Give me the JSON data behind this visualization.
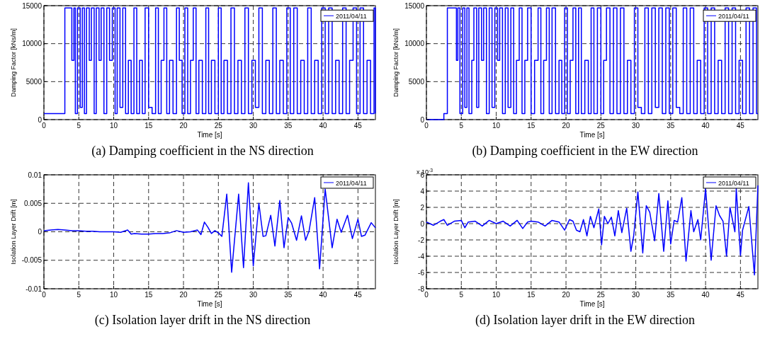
{
  "chart_data": [
    {
      "type": "step",
      "title": "(a) Damping coefficient in the NS direction",
      "xlabel": "Time [s]",
      "ylabel": "Damping Factor [kNs/m]",
      "xlim": [
        0,
        47.5
      ],
      "xticks": [
        0,
        5,
        10,
        15,
        20,
        25,
        30,
        35,
        40,
        45
      ],
      "ylim": [
        0,
        15000
      ],
      "yticks": [
        0,
        5000,
        10000,
        15000
      ],
      "grid": true,
      "legend": "top right",
      "series": [
        {
          "name": "2011/04/11",
          "color": "#0000ff",
          "x": [
            0,
            3,
            4,
            4.3,
            4.5,
            4.8,
            5.2,
            5.5,
            5.8,
            6.1,
            6.5,
            6.8,
            7.2,
            7.5,
            7.9,
            8.2,
            8.6,
            9,
            9.4,
            9.8,
            10.2,
            10.5,
            10.9,
            11.3,
            11.7,
            12.1,
            12.5,
            12.9,
            13.3,
            13.7,
            14.1,
            14.5,
            15,
            15.5,
            16,
            16.4,
            16.8,
            17.2,
            17.6,
            18,
            18.5,
            19,
            19.4,
            19.8,
            20.2,
            20.6,
            21,
            21.4,
            21.8,
            22.2,
            22.7,
            23.2,
            23.6,
            24,
            24.5,
            25,
            25.4,
            25.8,
            26.3,
            26.8,
            27.3,
            27.8,
            28.3,
            28.8,
            29.3,
            29.8,
            30.3,
            30.8,
            31.3,
            31.8,
            32.3,
            32.8,
            33.3,
            33.8,
            34.3,
            34.8,
            35.3,
            35.8,
            36.3,
            36.8,
            37.3,
            37.8,
            38.3,
            38.8,
            39.3,
            39.8,
            40.3,
            40.8,
            41.3,
            41.8,
            42.3,
            42.8,
            43.3,
            43.8,
            44.3,
            44.8,
            45.3,
            45.8,
            46.3,
            46.8,
            47.3,
            47.5
          ],
          "values": [
            800,
            14700,
            7800,
            14700,
            800,
            14700,
            1600,
            14700,
            800,
            14700,
            7800,
            14700,
            800,
            14700,
            7800,
            14700,
            800,
            14700,
            7800,
            14700,
            800,
            14700,
            1600,
            14700,
            800,
            7800,
            800,
            14700,
            800,
            7800,
            800,
            14700,
            1600,
            800,
            14700,
            800,
            7800,
            14700,
            800,
            7800,
            800,
            14700,
            7800,
            800,
            14700,
            800,
            7800,
            14700,
            800,
            7800,
            800,
            14700,
            800,
            7800,
            800,
            14700,
            800,
            7800,
            800,
            14700,
            800,
            7800,
            800,
            14700,
            800,
            7800,
            1600,
            14700,
            800,
            7800,
            800,
            14700,
            800,
            7800,
            800,
            14700,
            800,
            14700,
            800,
            7800,
            800,
            14700,
            800,
            7800,
            800,
            14700,
            800,
            14700,
            800,
            7800,
            800,
            14700,
            800,
            7800,
            14700,
            800,
            14700,
            800,
            7800,
            800,
            14700,
            800
          ]
        }
      ]
    },
    {
      "type": "step",
      "title": "(b) Damping coefficient in the EW direction",
      "xlabel": "Time [s]",
      "ylabel": "Damping Factor [kNs/m]",
      "xlim": [
        0,
        47.5
      ],
      "xticks": [
        0,
        5,
        10,
        15,
        20,
        25,
        30,
        35,
        40,
        45
      ],
      "ylim": [
        0,
        15000
      ],
      "yticks": [
        0,
        5000,
        10000,
        15000
      ],
      "grid": true,
      "legend": "top right",
      "series": [
        {
          "name": "2011/04/11",
          "color": "#0000ff",
          "x": [
            0,
            2.5,
            3,
            4.3,
            4.5,
            4.8,
            5.2,
            5.5,
            5.8,
            6.1,
            6.5,
            6.8,
            7.2,
            7.5,
            7.9,
            8.2,
            8.6,
            9,
            9.4,
            9.8,
            10.2,
            10.5,
            10.9,
            11.3,
            11.7,
            12.1,
            12.5,
            12.9,
            13.3,
            13.7,
            14.1,
            14.5,
            15,
            15.5,
            16,
            16.4,
            16.8,
            17.2,
            17.6,
            18,
            18.5,
            19,
            19.4,
            19.8,
            20.2,
            20.6,
            21,
            21.4,
            21.8,
            22.2,
            22.7,
            23.2,
            23.6,
            24,
            24.5,
            25,
            25.4,
            25.8,
            26.3,
            26.8,
            27.3,
            27.8,
            28.3,
            28.8,
            29.3,
            29.8,
            30.3,
            30.8,
            31.3,
            31.8,
            32.3,
            32.8,
            33.3,
            33.8,
            34.3,
            34.8,
            35.3,
            35.8,
            36.3,
            36.8,
            37.3,
            37.8,
            38.3,
            38.8,
            39.3,
            39.8,
            40.3,
            40.8,
            41.3,
            41.8,
            42.3,
            42.8,
            43.3,
            43.8,
            44.3,
            44.8,
            45.3,
            45.8,
            46.3,
            46.8,
            47.3,
            47.5
          ],
          "values": [
            0,
            800,
            14700,
            7800,
            14700,
            800,
            14700,
            1600,
            14700,
            800,
            7800,
            14700,
            1600,
            14700,
            7800,
            14700,
            800,
            14700,
            1600,
            14700,
            7800,
            14700,
            800,
            14700,
            1600,
            14700,
            800,
            7800,
            14700,
            800,
            7800,
            14700,
            800,
            7800,
            14700,
            800,
            7800,
            14700,
            800,
            14700,
            800,
            7800,
            800,
            14700,
            800,
            7800,
            14700,
            800,
            14700,
            800,
            7800,
            800,
            14700,
            800,
            14700,
            800,
            7800,
            14700,
            800,
            14700,
            800,
            14700,
            800,
            7800,
            800,
            14700,
            1600,
            800,
            14700,
            800,
            14700,
            1600,
            14700,
            800,
            14700,
            800,
            14700,
            1600,
            800,
            14700,
            800,
            14700,
            800,
            7800,
            800,
            14700,
            800,
            14700,
            800,
            7800,
            800,
            14700,
            800,
            14700,
            800,
            7800,
            800,
            14700,
            800,
            14700,
            800,
            800
          ]
        }
      ]
    },
    {
      "type": "line",
      "title": "(c) Isolation layer drift in the NS direction",
      "xlabel": "Time [s]",
      "ylabel": "Isolation Layer Drift [m]",
      "xlim": [
        0,
        47.5
      ],
      "xticks": [
        0,
        5,
        10,
        15,
        20,
        25,
        30,
        35,
        40,
        45
      ],
      "ylim": [
        -0.01,
        0.01
      ],
      "yticks": [
        -0.01,
        -0.005,
        0,
        0.005,
        0.01
      ],
      "grid": true,
      "legend": "top right",
      "series": [
        {
          "name": "2011/04/11",
          "color": "#0000ff",
          "x": [
            0,
            1,
            2,
            3,
            4,
            5,
            6,
            7,
            8,
            9,
            10,
            11,
            12,
            12.5,
            13,
            14,
            15,
            16,
            17,
            18,
            19,
            20,
            21,
            22,
            22.5,
            23,
            23.5,
            24,
            24.5,
            25,
            25.5,
            26.2,
            26.9,
            27.9,
            28.6,
            29.3,
            30,
            30.8,
            31.4,
            31.8,
            32.5,
            33.1,
            33.8,
            34.4,
            35,
            35.5,
            36.2,
            36.9,
            37.5,
            38,
            38.8,
            39.5,
            40.3,
            41.3,
            42,
            42.6,
            43.5,
            44.2,
            45,
            45.5,
            46,
            46.9,
            47.5
          ],
          "values": [
            0.0002,
            0.0003,
            0.0004,
            0.0003,
            0.0002,
            0.0002,
            0.0001,
            0.0001,
            0,
            0,
            0,
            -0.0001,
            0.0003,
            -0.0004,
            -0.0003,
            -0.0004,
            -0.0004,
            -0.0003,
            -0.0003,
            -0.0002,
            0.0002,
            -0.0001,
            0,
            0.0003,
            -0.0005,
            0.0017,
            0.0008,
            -0.0003,
            0.0002,
            -0.0002,
            -0.0008,
            0.0066,
            -0.0071,
            0.0066,
            -0.0063,
            0.0086,
            -0.006,
            0.005,
            -0.0008,
            -0.0007,
            0.0029,
            -0.0025,
            0.0055,
            -0.0028,
            0.0025,
            0.0015,
            -0.0015,
            0.0028,
            -0.0015,
            0.0002,
            0.006,
            -0.0065,
            0.0075,
            -0.0028,
            0.0022,
            -0.0001,
            0.0029,
            -0.0012,
            0.0022,
            -0.0008,
            -0.0006,
            0.0016,
            0.0007
          ]
        }
      ]
    },
    {
      "type": "line",
      "title": "(d) Isolation layer drift in the EW direction",
      "xlabel": "Time [s]",
      "ylabel": "Isolation Layer Drift [m]",
      "annotations": [
        "x 10$^{-3}$"
      ],
      "xlim": [
        0,
        47.5
      ],
      "xticks": [
        0,
        5,
        10,
        15,
        20,
        25,
        30,
        35,
        40,
        45
      ],
      "ylim": [
        -8,
        6
      ],
      "yticks": [
        -8,
        -6,
        -4,
        -2,
        0,
        2,
        4,
        6
      ],
      "grid": true,
      "legend": "top right",
      "series": [
        {
          "name": "2011/04/11",
          "color": "#0000ff",
          "x": [
            0,
            1,
            2,
            2.5,
            3,
            4,
            5,
            5.5,
            6,
            7,
            8,
            9,
            10,
            11,
            12,
            13,
            13.8,
            14.5,
            15,
            16,
            17,
            18,
            19,
            19.8,
            20.5,
            21,
            21.5,
            22,
            22.5,
            23,
            23.5,
            24,
            24.7,
            25.1,
            25.5,
            26,
            26.5,
            27,
            27.5,
            28,
            28.7,
            29.3,
            29.7,
            30.3,
            31,
            31.5,
            32,
            32.7,
            33.3,
            34,
            34.6,
            35,
            35.5,
            36,
            36.6,
            37.2,
            37.9,
            38.3,
            38.9,
            39.3,
            40,
            40.8,
            41.5,
            42,
            42.5,
            43,
            43.5,
            44.2,
            44.4,
            45,
            45.3,
            46.2,
            47,
            47.5
          ],
          "values": [
            0.2,
            -0.2,
            0.3,
            0.5,
            -0.2,
            0.3,
            0.4,
            -0.5,
            0.2,
            0.3,
            -0.3,
            0.4,
            0,
            0.3,
            -0.3,
            0.4,
            -0.6,
            0.2,
            0.3,
            0.2,
            -0.3,
            0.4,
            0.2,
            -0.8,
            0.5,
            0.3,
            -0.8,
            -1,
            0.5,
            -1.5,
            0.9,
            -0.5,
            1.8,
            -2.6,
            0.9,
            0,
            0.8,
            -1.5,
            1.6,
            -1.1,
            1.9,
            -3.4,
            -1.5,
            3.9,
            -3.6,
            2.2,
            1.4,
            -2.1,
            3.7,
            -3.4,
            2.8,
            -2.5,
            0.4,
            0.2,
            3.2,
            -4.6,
            1.6,
            -1,
            0.5,
            -2,
            4.3,
            -4.5,
            2.2,
            1,
            0.3,
            -4,
            2,
            -1,
            4.3,
            -3.9,
            -0.8,
            2.1,
            -6.3,
            4.7
          ]
        }
      ]
    }
  ]
}
